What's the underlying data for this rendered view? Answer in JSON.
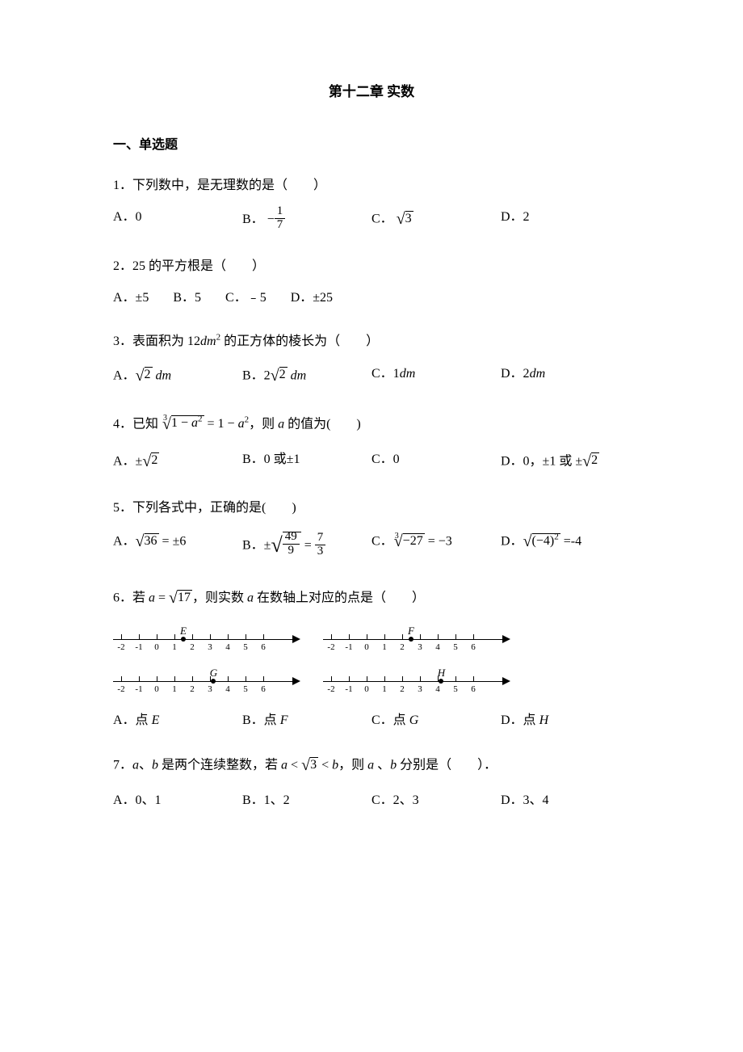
{
  "chapter_title": "第十二章 实数",
  "section1_title": "一、单选题",
  "q1": {
    "stem": "1．下列数中，是无理数的是（　　）",
    "optA": "A．0",
    "optB_prefix": "B．",
    "optB_minus": "−",
    "optB_num": "1",
    "optB_den": "7",
    "optC_prefix": "C．",
    "optC_rad": "3",
    "optD": "D．2"
  },
  "q2": {
    "stem": "2．25 的平方根是（　　）",
    "optA": "A．±5",
    "optB": "B．5",
    "optC": "C．﹣5",
    "optD": "D．±25"
  },
  "q3": {
    "stem_pre": "3．表面积为 12",
    "stem_unit": "dm",
    "stem_post": " 的正方体的棱长为（　　）",
    "optA_prefix": "A．",
    "optA_rad": "2",
    "optA_unit": " dm",
    "optB_prefix": "B．2",
    "optB_rad": "2",
    "optB_unit": " dm",
    "optC": "C．1dm",
    "optD": "D．2dm"
  },
  "q4": {
    "stem_pre": "4．已知 ",
    "stem_idx": "3",
    "stem_rad_inner_a": "1 − a",
    "stem_eq": " = 1 − a",
    "stem_post": "，则 a 的值为(　　)",
    "optA_prefix": "A．±",
    "optA_rad": "2",
    "optB": "B．0 或±1",
    "optC": "C．0",
    "optD_prefix": "D．0，±1 或 ±",
    "optD_rad": "2"
  },
  "q5": {
    "stem": "5．下列各式中，正确的是(　　)",
    "optA_prefix": "A．",
    "optA_rad": "36",
    "optA_post": " = ±6",
    "optB_prefix": "B．±",
    "optB_num": "49",
    "optB_den": "9",
    "optB_eq": " = ",
    "optB_rnum": "7",
    "optB_rden": "3",
    "optC_prefix": "C．",
    "optC_idx": "3",
    "optC_rad": "−27",
    "optC_post": " = −3",
    "optD_prefix": "D．",
    "optD_rad_inner": "(−4)",
    "optD_post": " =-4"
  },
  "q6": {
    "stem_pre": "6．若 ",
    "stem_a": "a = ",
    "stem_rad": "17",
    "stem_post": "，则实数 a 在数轴上对应的点是（　　）",
    "labels": [
      "-2",
      "-1",
      "0",
      "1",
      "2",
      "3",
      "4",
      "5",
      "6"
    ],
    "points": {
      "E": 1.5,
      "F": 2.5,
      "G": 3.2,
      "H": 4.2
    },
    "optA": "A．点 E",
    "optB": "B．点 F",
    "optC": "C．点 G",
    "optD": "D．点 H"
  },
  "q7": {
    "stem_pre": "7．a、b 是两个连续整数，若 ",
    "stem_a": "a < ",
    "stem_rad": "3",
    "stem_b": " < b",
    "stem_post": "，则 a 、b 分别是（　　）．",
    "optA": "A．0、1",
    "optB": "B．1、2",
    "optC": "C．2、3",
    "optD": "D．3、4"
  },
  "colors": {
    "text": "#000000",
    "background": "#ffffff"
  }
}
